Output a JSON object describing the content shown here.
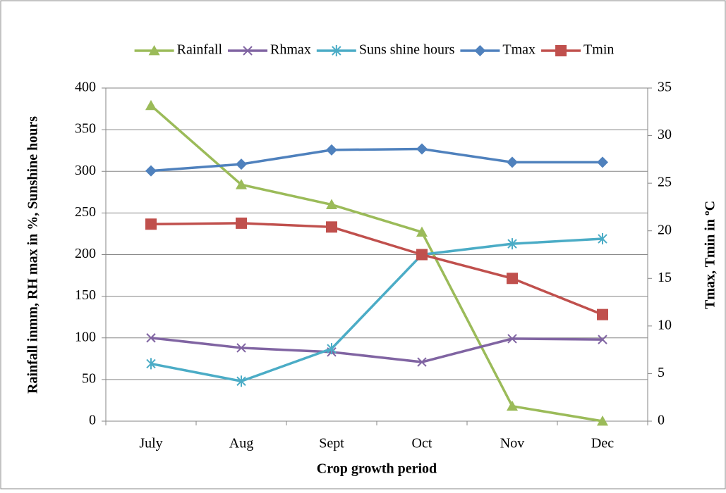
{
  "chart_data": {
    "type": "line",
    "x_label": "Crop growth period",
    "y_label": "Rainfall inmm, RH max in %, Sunshine hours",
    "y2_label": "Tmax, Tmin in ºC",
    "categories": [
      "July",
      "Aug",
      "Sept",
      "Oct",
      "Nov",
      "Dec"
    ],
    "series": [
      {
        "name": "Rainfall",
        "color": "#9bbb59",
        "marker": "triangle",
        "values": [
          379,
          284,
          260,
          227,
          18,
          0
        ]
      },
      {
        "name": "Rhmax",
        "color": "#8064a2",
        "marker": "x",
        "values": [
          100,
          88,
          83,
          71,
          99,
          98
        ]
      },
      {
        "name": "Suns shine hours",
        "color": "#4bacc6",
        "marker": "star",
        "values": [
          69,
          48,
          87,
          200,
          213,
          219
        ]
      },
      {
        "name": "Tmax",
        "color": "#4f81bd",
        "marker": "diamond",
        "axis": "y2",
        "values": [
          26.3,
          27.0,
          28.5,
          28.6,
          27.2,
          27.2
        ]
      },
      {
        "name": "Tmin",
        "color": "#c0504d",
        "marker": "square",
        "axis": "y2",
        "values": [
          20.7,
          20.8,
          20.4,
          17.5,
          15.0,
          11.2
        ]
      }
    ],
    "ylim": [
      0,
      400
    ],
    "yticks": [
      0,
      50,
      100,
      150,
      200,
      250,
      300,
      350,
      400
    ],
    "y2lim": [
      0,
      35
    ],
    "y2ticks": [
      0,
      5,
      10,
      15,
      20,
      25,
      30,
      35
    ],
    "grid": true,
    "legend": "top"
  }
}
